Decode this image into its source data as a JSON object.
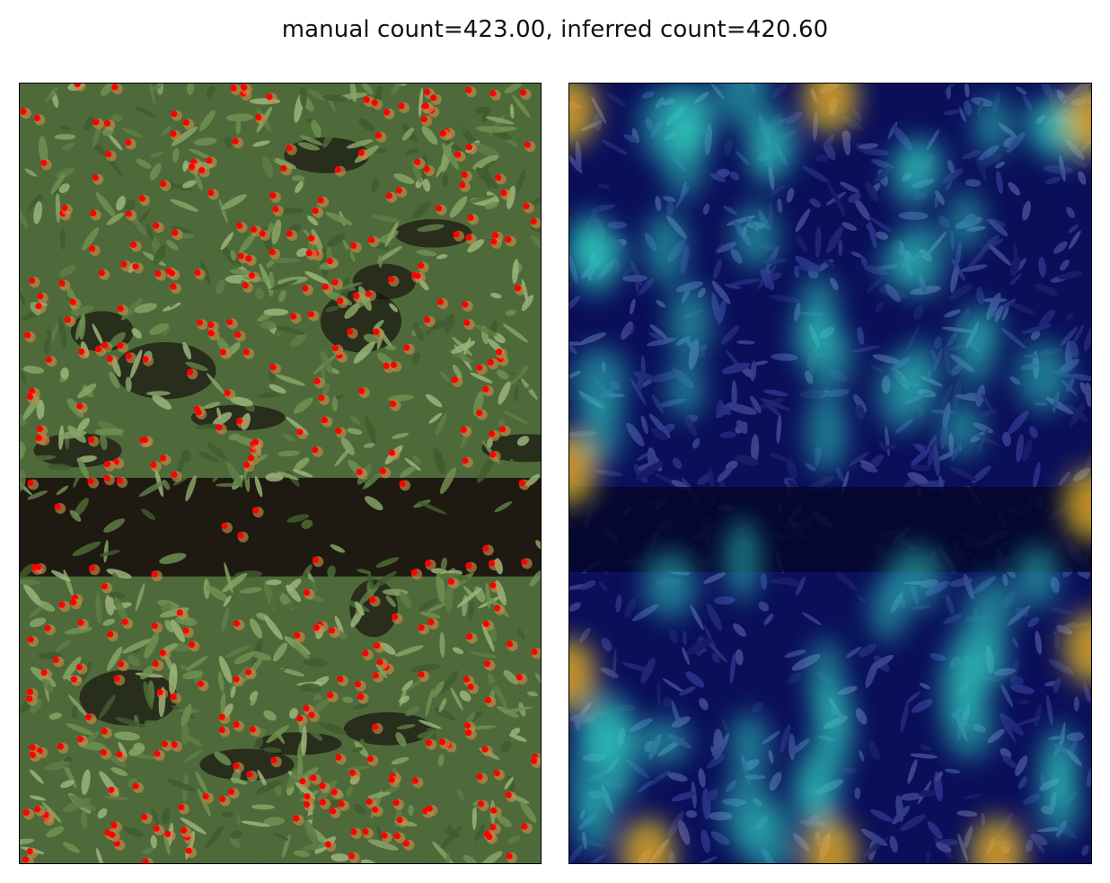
{
  "figure": {
    "title": "manual count=423.00, inferred count=420.60"
  },
  "panels": [
    {
      "name": "annotated-photo",
      "description": "aerial crop image with red point annotations of flower heads"
    },
    {
      "name": "density-heatmap",
      "description": "predicted density heatmap (jet colormap) overlaid on the aerial image"
    }
  ],
  "colors": {
    "annotation_dot": "#ff0000",
    "foliage": "#4f6a3a",
    "soil": "#1a140e",
    "heat_low": "#101a8c",
    "heat_mid": "#2fd0c0",
    "heat_high": "#f0d020"
  },
  "stats": {
    "manual_count": 423.0,
    "inferred_count": 420.6
  }
}
